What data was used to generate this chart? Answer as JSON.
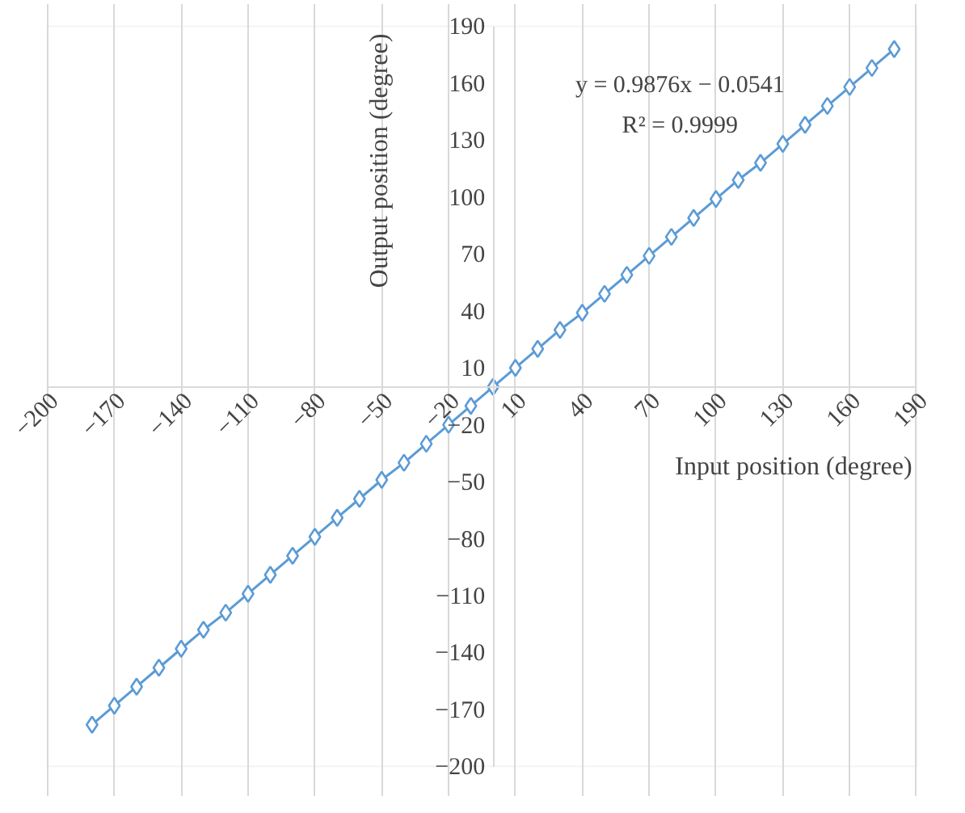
{
  "chart_data": {
    "type": "line",
    "xlabel": "Input position (degree)",
    "ylabel": "Output position (degree)",
    "x": [
      -180,
      -170,
      -160,
      -150,
      -140,
      -130,
      -120,
      -110,
      -100,
      -90,
      -80,
      -70,
      -60,
      -50,
      -40,
      -30,
      -20,
      -10,
      0,
      10,
      20,
      30,
      40,
      50,
      60,
      70,
      80,
      90,
      100,
      110,
      120,
      130,
      140,
      150,
      160,
      170,
      180
    ],
    "series": [
      {
        "color": "#5b9bd5",
        "values": [
          -178,
          -168,
          -158,
          -148,
          -138,
          -128,
          -119,
          -109,
          -99,
          -89,
          -79,
          -69,
          -59,
          -49,
          -40,
          -30,
          -20,
          -10,
          0,
          10,
          20,
          30,
          39,
          49,
          59,
          69,
          79,
          89,
          99,
          109,
          118,
          128,
          138,
          148,
          158,
          168,
          178
        ]
      }
    ],
    "marker": "diamond",
    "line_style": "solid",
    "grid": "x",
    "annotations": [
      "y = 0.9876x − 0.0541",
      "R² = 0.9999"
    ],
    "xlim": [
      -200,
      190
    ],
    "ylim": [
      -200,
      190
    ],
    "xticks": [
      {
        "value": -200,
        "label": "−200"
      },
      {
        "value": -170,
        "label": "−170"
      },
      {
        "value": -140,
        "label": "−140"
      },
      {
        "value": -110,
        "label": "−110"
      },
      {
        "value": -80,
        "label": "−80"
      },
      {
        "value": -50,
        "label": "−50"
      },
      {
        "value": -20,
        "label": "−20"
      },
      10,
      40,
      70,
      100,
      130,
      160,
      190
    ],
    "yticks": [
      {
        "value": -200,
        "label": "−200"
      },
      {
        "value": -170,
        "label": "−170"
      },
      {
        "value": -140,
        "label": "−140"
      },
      {
        "value": -110,
        "label": "−110"
      },
      {
        "value": -80,
        "label": "−80"
      },
      {
        "value": -50,
        "label": "−50"
      },
      {
        "value": -20,
        "label": "−20"
      },
      10,
      40,
      70,
      100,
      130,
      160,
      190
    ]
  }
}
